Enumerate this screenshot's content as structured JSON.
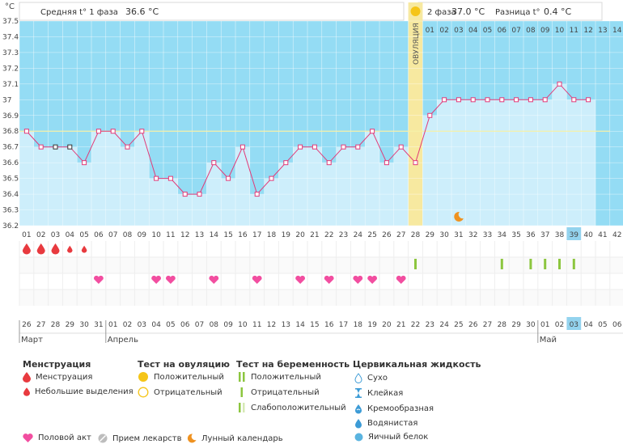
{
  "header": {
    "unit": "°C",
    "phase1_label": "Средняя t° 1 фаза",
    "phase1_value": "36.6 °C",
    "phase2_label": "2 фаза",
    "phase2_value": "37.0 °C",
    "diff_label": "Разница t°",
    "diff_value": "0.4 °C",
    "ovulation_label": "ОВУЛЯЦИЯ"
  },
  "chart_data": {
    "type": "line",
    "ylim": [
      36.2,
      37.5
    ],
    "yticks": [
      "36.2",
      "36.3",
      "36.4",
      "36.5",
      "36.6",
      "36.7",
      "36.8",
      "36.9",
      "37",
      "37.1",
      "37.2",
      "37.3",
      "37.4",
      "37.5"
    ],
    "cycle_days": [
      "01",
      "02",
      "03",
      "04",
      "05",
      "06",
      "07",
      "08",
      "09",
      "10",
      "11",
      "12",
      "13",
      "14",
      "15",
      "16",
      "17",
      "18",
      "19",
      "20",
      "21",
      "22",
      "23",
      "24",
      "25",
      "26",
      "27",
      "28",
      "29",
      "30",
      "31",
      "32",
      "33",
      "34",
      "35",
      "36",
      "37",
      "38",
      "39",
      "40",
      "41",
      "42"
    ],
    "phase2_days": [
      "01",
      "02",
      "03",
      "04",
      "05",
      "06",
      "07",
      "08",
      "09",
      "10",
      "11",
      "12",
      "13",
      "14"
    ],
    "coverline": 36.8,
    "ovulation_day": 28,
    "current_day": 39,
    "temperatures": [
      36.8,
      36.7,
      36.7,
      36.7,
      36.6,
      36.8,
      36.8,
      36.7,
      36.8,
      36.5,
      36.5,
      36.4,
      36.4,
      36.6,
      36.5,
      36.7,
      36.4,
      36.5,
      36.6,
      36.7,
      36.7,
      36.6,
      36.7,
      36.7,
      36.8,
      36.6,
      36.7,
      36.6,
      36.9,
      37.0,
      37.0,
      37.0,
      37.0,
      37.0,
      37.0,
      37.0,
      37.0,
      37.1,
      37.0,
      37.0
    ],
    "excluded_days": [
      3,
      4
    ],
    "dates": [
      "26",
      "27",
      "28",
      "29",
      "30",
      "31",
      "01",
      "02",
      "03",
      "04",
      "05",
      "06",
      "07",
      "08",
      "09",
      "10",
      "11",
      "12",
      "13",
      "14",
      "15",
      "16",
      "17",
      "18",
      "19",
      "20",
      "21",
      "22",
      "23",
      "24",
      "25",
      "26",
      "27",
      "28",
      "29",
      "30",
      "01",
      "02",
      "03",
      "04",
      "05",
      "06"
    ],
    "red_dates": [
      3,
      4,
      10,
      11,
      16,
      23,
      24,
      31,
      32,
      38
    ],
    "months": [
      {
        "label": "Март",
        "start_day": 1
      },
      {
        "label": "Апрель",
        "start_day": 7
      },
      {
        "label": "Май",
        "start_day": 37
      }
    ],
    "menstruation": [
      {
        "day": 1,
        "kind": "heavy"
      },
      {
        "day": 2,
        "kind": "heavy"
      },
      {
        "day": 3,
        "kind": "heavy"
      },
      {
        "day": 4,
        "kind": "light"
      },
      {
        "day": 5,
        "kind": "light"
      }
    ],
    "ovulation_tests": [
      {
        "day": 28,
        "kind": "positive"
      },
      {
        "day": 34,
        "kind": "positive"
      },
      {
        "day": 36,
        "kind": "positive"
      },
      {
        "day": 37,
        "kind": "positive"
      },
      {
        "day": 38,
        "kind": "positive"
      },
      {
        "day": 39,
        "kind": "positive"
      }
    ],
    "intercourse_days": [
      6,
      10,
      11,
      14,
      17,
      20,
      22,
      24,
      25,
      27
    ],
    "moon_day": 31
  },
  "legend": {
    "menstruation": {
      "title": "Менструация",
      "items": [
        "Менструация",
        "Небольшие выделения"
      ]
    },
    "ovulation_test": {
      "title": "Тест на овуляцию",
      "items": [
        "Положительный",
        "Отрицательный"
      ]
    },
    "pregnancy_test": {
      "title": "Тест на беременность",
      "items": [
        "Положительный",
        "Отрицательный",
        "Слабоположительный"
      ]
    },
    "cervical_fluid": {
      "title": "Цервикальная жидкость",
      "items": [
        "Сухо",
        "Клейкая",
        "Кремообразная",
        "Водянистая",
        "Яичный белок"
      ]
    },
    "other": [
      "Половой акт",
      "Прием лекарств",
      "Лунный календарь"
    ]
  },
  "colors": {
    "phase_dark": "#94dcf4",
    "phase_light": "#cdeefb",
    "ovulation_band": "#f7e9a0",
    "curve": "#e23a78",
    "blood": "#e83a3f",
    "heart": "#f24ea0",
    "sun": "#f5c518",
    "moon": "#ef9220",
    "test_green": "#8cc63f",
    "drop_blue": "#3c9bd6",
    "today_box": "#93d3ee"
  }
}
